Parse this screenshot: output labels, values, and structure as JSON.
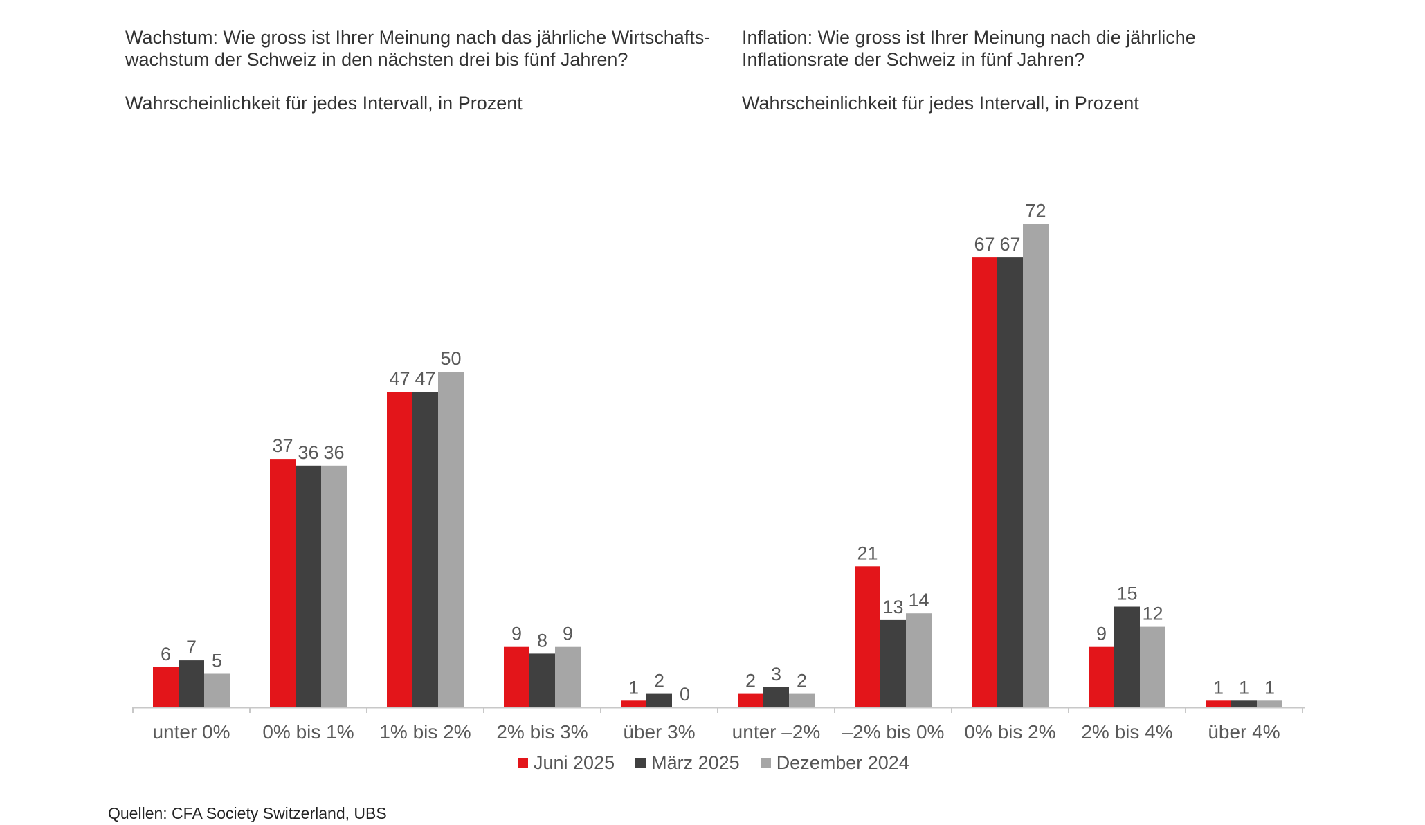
{
  "panels": {
    "left": {
      "title": "Wachstum: Wie gross ist Ihrer Meinung nach das jährliche Wirtschafts-\nwachstum der Schweiz in den nächsten drei bis fünf Jahren?",
      "subtitle": "Wahrscheinlichkeit für jedes Intervall, in Prozent"
    },
    "right": {
      "title": "Inflation: Wie gross ist Ihrer Meinung nach die jährliche\nInflationsrate der Schweiz in fünf Jahren?",
      "subtitle": "Wahrscheinlichkeit für jedes Intervall, in Prozent"
    }
  },
  "legend": [
    {
      "label": "Juni 2025",
      "color": "#e3151a"
    },
    {
      "label": "März 2025",
      "color": "#404040"
    },
    {
      "label": "Dezember 2024",
      "color": "#a6a6a6"
    }
  ],
  "source": "Quellen: CFA Society Switzerland, UBS",
  "chart_data": [
    {
      "type": "bar",
      "title": "Wachstum: Wie gross ist Ihrer Meinung nach das jährliche Wirtschafts-wachstum der Schweiz in den nächsten drei bis fünf Jahren?",
      "categories": [
        "unter 0%",
        "0% bis 1%",
        "1% bis 2%",
        "2% bis 3%",
        "über 3%"
      ],
      "series": [
        {
          "name": "Juni 2025",
          "color": "#e3151a",
          "values": [
            6,
            37,
            47,
            9,
            1
          ]
        },
        {
          "name": "März 2025",
          "color": "#404040",
          "values": [
            7,
            36,
            47,
            8,
            2
          ]
        },
        {
          "name": "Dezember 2024",
          "color": "#a6a6a6",
          "values": [
            5,
            36,
            50,
            9,
            0
          ]
        }
      ],
      "ylim": [
        0,
        75
      ]
    },
    {
      "type": "bar",
      "title": "Inflation: Wie gross ist Ihrer Meinung nach die jährliche Inflationsrate der Schweiz in fünf Jahren?",
      "categories": [
        "unter –2%",
        "–2% bis 0%",
        "0% bis 2%",
        "2% bis 4%",
        "über 4%"
      ],
      "series": [
        {
          "name": "Juni 2025",
          "color": "#e3151a",
          "values": [
            2,
            21,
            67,
            9,
            1
          ]
        },
        {
          "name": "März 2025",
          "color": "#404040",
          "values": [
            3,
            13,
            67,
            15,
            1
          ]
        },
        {
          "name": "Dezember 2024",
          "color": "#a6a6a6",
          "values": [
            2,
            14,
            72,
            12,
            1
          ]
        }
      ],
      "ylim": [
        0,
        75
      ]
    }
  ]
}
